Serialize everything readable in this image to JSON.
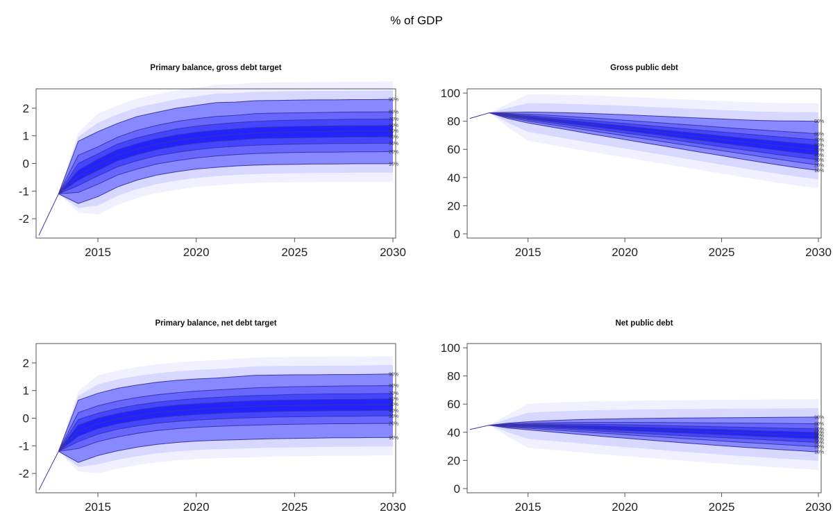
{
  "page_title": "% of GDP",
  "colors": {
    "fan": "#0000ff",
    "line": "#3a36a8",
    "axis": "#555555"
  },
  "chart_data": [
    {
      "type": "fan",
      "title": "Primary balance, gross debt target",
      "xlim": [
        2012,
        2030
      ],
      "ylim": [
        -2.7,
        2.7
      ],
      "xticks": [
        2015,
        2020,
        2025,
        2030
      ],
      "yticks": [
        -2,
        -1,
        0,
        1,
        2
      ],
      "history": {
        "x": [
          2012,
          2013
        ],
        "y": [
          -2.6,
          -1.1
        ]
      },
      "quantile_labels": [
        "90%",
        "80%",
        "70%",
        "60%",
        "50%",
        "40%",
        "30%",
        "20%",
        "10%"
      ],
      "x": [
        2013,
        2014,
        2015,
        2016,
        2017,
        2018,
        2019,
        2020,
        2021,
        2022,
        2023,
        2024,
        2025,
        2026,
        2027,
        2028,
        2029,
        2030
      ],
      "quantiles": {
        "90%": [
          -1.1,
          0.8,
          1.15,
          1.45,
          1.7,
          1.85,
          2.0,
          2.1,
          2.2,
          2.22,
          2.27,
          2.28,
          2.29,
          2.3,
          2.3,
          2.31,
          2.31,
          2.32
        ],
        "80%": [
          -1.1,
          0.3,
          0.6,
          0.95,
          1.2,
          1.38,
          1.52,
          1.62,
          1.7,
          1.74,
          1.8,
          1.82,
          1.83,
          1.84,
          1.85,
          1.86,
          1.86,
          1.87
        ],
        "70%": [
          -1.1,
          0.0,
          0.35,
          0.7,
          0.93,
          1.1,
          1.25,
          1.35,
          1.42,
          1.48,
          1.52,
          1.55,
          1.57,
          1.58,
          1.59,
          1.6,
          1.6,
          1.61
        ],
        "60%": [
          -1.1,
          -0.25,
          0.15,
          0.5,
          0.72,
          0.9,
          1.03,
          1.13,
          1.2,
          1.25,
          1.3,
          1.32,
          1.34,
          1.35,
          1.36,
          1.37,
          1.37,
          1.38
        ],
        "50%": [
          -1.1,
          -0.45,
          -0.05,
          0.3,
          0.52,
          0.7,
          0.83,
          0.93,
          1.0,
          1.05,
          1.1,
          1.12,
          1.14,
          1.15,
          1.16,
          1.17,
          1.17,
          1.18
        ],
        "40%": [
          -1.1,
          -0.6,
          -0.25,
          0.1,
          0.32,
          0.5,
          0.63,
          0.73,
          0.8,
          0.85,
          0.9,
          0.92,
          0.93,
          0.94,
          0.95,
          0.96,
          0.96,
          0.97
        ],
        "30%": [
          -1.1,
          -0.8,
          -0.45,
          -0.12,
          0.1,
          0.28,
          0.4,
          0.5,
          0.57,
          0.62,
          0.66,
          0.68,
          0.7,
          0.71,
          0.72,
          0.72,
          0.73,
          0.73
        ],
        "20%": [
          -1.1,
          -1.05,
          -0.75,
          -0.42,
          -0.2,
          -0.02,
          0.1,
          0.2,
          0.27,
          0.32,
          0.36,
          0.38,
          0.4,
          0.41,
          0.41,
          0.42,
          0.42,
          0.43
        ],
        "10%": [
          -1.1,
          -1.45,
          -1.2,
          -0.85,
          -0.6,
          -0.42,
          -0.3,
          -0.2,
          -0.14,
          -0.09,
          -0.06,
          -0.04,
          -0.03,
          -0.02,
          -0.02,
          -0.01,
          -0.01,
          -0.01
        ]
      }
    },
    {
      "type": "fan",
      "title": "Gross public debt",
      "xlim": [
        2012,
        2030
      ],
      "ylim": [
        -3,
        103
      ],
      "xticks": [
        2015,
        2020,
        2025,
        2030
      ],
      "yticks": [
        0,
        20,
        40,
        60,
        80,
        100
      ],
      "history": {
        "x": [
          2012,
          2013
        ],
        "y": [
          82,
          86
        ]
      },
      "quantile_labels": [
        "90%",
        "80%",
        "70%",
        "60%",
        "50%",
        "40%",
        "30%",
        "20%",
        "10%"
      ],
      "x": [
        2013,
        2014,
        2015,
        2016,
        2017,
        2018,
        2019,
        2020,
        2021,
        2022,
        2023,
        2024,
        2025,
        2026,
        2027,
        2028,
        2029,
        2030
      ],
      "quantiles": {
        "90%": [
          86,
          86.3,
          86.5,
          86.3,
          86,
          85.6,
          85.1,
          84.6,
          84.0,
          83.4,
          82.8,
          82.2,
          81.6,
          81.0,
          80.5,
          80.2,
          80.1,
          80.0
        ],
        "80%": [
          86,
          85.5,
          85.0,
          84.3,
          83.5,
          82.6,
          81.7,
          80.7,
          79.7,
          78.7,
          77.7,
          76.7,
          75.7,
          74.7,
          73.8,
          72.9,
          72.0,
          71.0
        ],
        "70%": [
          86,
          85.0,
          84.0,
          83.0,
          81.9,
          80.8,
          79.6,
          78.4,
          77.2,
          76.0,
          74.8,
          73.6,
          72.4,
          71.2,
          70.0,
          68.9,
          67.8,
          66.7
        ],
        "60%": [
          86,
          84.6,
          83.3,
          82.0,
          80.7,
          79.4,
          78.0,
          76.6,
          75.2,
          73.8,
          72.4,
          71.0,
          69.6,
          68.2,
          66.9,
          65.6,
          64.3,
          63.0
        ],
        "50%": [
          86,
          84.2,
          82.6,
          81.1,
          79.6,
          78.1,
          76.6,
          75.0,
          73.4,
          71.8,
          70.2,
          68.6,
          67.0,
          65.5,
          64.0,
          62.5,
          61.0,
          59.5
        ],
        "40%": [
          86,
          83.8,
          81.9,
          80.2,
          78.5,
          76.8,
          75.1,
          73.4,
          71.6,
          69.8,
          68.0,
          66.2,
          64.4,
          62.7,
          61.0,
          59.3,
          57.6,
          56.0
        ],
        "30%": [
          86,
          83.3,
          81.1,
          79.2,
          77.3,
          75.4,
          73.5,
          71.6,
          69.7,
          67.8,
          65.8,
          63.8,
          61.8,
          59.9,
          58.0,
          56.1,
          54.3,
          52.5
        ],
        "20%": [
          86,
          82.7,
          80.1,
          78.0,
          75.9,
          73.8,
          71.7,
          69.6,
          67.5,
          65.4,
          63.3,
          61.2,
          59.1,
          57.0,
          54.9,
          52.8,
          50.8,
          48.8
        ],
        "10%": [
          86,
          81.8,
          78.8,
          76.4,
          74.0,
          71.6,
          69.3,
          67.0,
          64.7,
          62.4,
          60.1,
          57.8,
          55.5,
          53.2,
          51.0,
          48.8,
          46.8,
          45.0
        ]
      }
    },
    {
      "type": "fan",
      "title": "Primary balance, net debt target",
      "xlim": [
        2012,
        2030
      ],
      "ylim": [
        -2.7,
        2.7
      ],
      "xticks": [
        2015,
        2020,
        2025,
        2030
      ],
      "yticks": [
        -2,
        -1,
        0,
        1,
        2
      ],
      "history": {
        "x": [
          2012,
          2013
        ],
        "y": [
          -2.6,
          -1.2
        ]
      },
      "quantile_labels": [
        "90%",
        "80%",
        "70%",
        "60%",
        "50%",
        "40%",
        "30%",
        "20%",
        "10%"
      ],
      "x": [
        2013,
        2014,
        2015,
        2016,
        2017,
        2018,
        2019,
        2020,
        2021,
        2022,
        2023,
        2024,
        2025,
        2026,
        2027,
        2028,
        2029,
        2030
      ],
      "quantiles": {
        "90%": [
          -1.2,
          0.65,
          0.9,
          1.08,
          1.2,
          1.3,
          1.37,
          1.42,
          1.45,
          1.5,
          1.55,
          1.56,
          1.57,
          1.57,
          1.58,
          1.58,
          1.59,
          1.6
        ],
        "80%": [
          -1.2,
          0.2,
          0.45,
          0.62,
          0.75,
          0.85,
          0.92,
          0.98,
          1.02,
          1.06,
          1.1,
          1.12,
          1.14,
          1.15,
          1.16,
          1.17,
          1.17,
          1.18
        ],
        "70%": [
          -1.2,
          -0.05,
          0.18,
          0.35,
          0.48,
          0.58,
          0.65,
          0.71,
          0.75,
          0.79,
          0.82,
          0.84,
          0.86,
          0.87,
          0.88,
          0.88,
          0.89,
          0.9
        ],
        "60%": [
          -1.2,
          -0.25,
          0.0,
          0.17,
          0.3,
          0.4,
          0.47,
          0.52,
          0.56,
          0.6,
          0.63,
          0.65,
          0.66,
          0.67,
          0.68,
          0.68,
          0.69,
          0.7
        ],
        "50%": [
          -1.2,
          -0.45,
          -0.2,
          -0.02,
          0.1,
          0.2,
          0.27,
          0.32,
          0.36,
          0.4,
          0.43,
          0.45,
          0.46,
          0.47,
          0.48,
          0.48,
          0.49,
          0.5
        ],
        "40%": [
          -1.2,
          -0.65,
          -0.38,
          -0.2,
          -0.08,
          0.02,
          0.08,
          0.13,
          0.17,
          0.2,
          0.22,
          0.24,
          0.25,
          0.26,
          0.27,
          0.27,
          0.28,
          0.28
        ],
        "30%": [
          -1.2,
          -0.85,
          -0.58,
          -0.4,
          -0.28,
          -0.18,
          -0.12,
          -0.07,
          -0.03,
          0.0,
          0.02,
          0.04,
          0.05,
          0.06,
          0.07,
          0.07,
          0.08,
          0.08
        ],
        "20%": [
          -1.2,
          -1.1,
          -0.85,
          -0.68,
          -0.55,
          -0.45,
          -0.38,
          -0.33,
          -0.3,
          -0.27,
          -0.25,
          -0.23,
          -0.22,
          -0.21,
          -0.2,
          -0.2,
          -0.19,
          -0.19
        ],
        "10%": [
          -1.2,
          -1.6,
          -1.35,
          -1.18,
          -1.05,
          -0.95,
          -0.88,
          -0.83,
          -0.8,
          -0.78,
          -0.76,
          -0.74,
          -0.73,
          -0.72,
          -0.71,
          -0.71,
          -0.7,
          -0.7
        ]
      }
    },
    {
      "type": "fan",
      "title": "Net public debt",
      "xlim": [
        2012,
        2030
      ],
      "ylim": [
        -3,
        103
      ],
      "xticks": [
        2015,
        2020,
        2025,
        2030
      ],
      "yticks": [
        0,
        20,
        40,
        60,
        80,
        100
      ],
      "history": {
        "x": [
          2012,
          2013
        ],
        "y": [
          42,
          45
        ]
      },
      "quantile_labels": [
        "90%",
        "80%",
        "70%",
        "60%",
        "50%",
        "40%",
        "30%",
        "20%",
        "10%"
      ],
      "x": [
        2013,
        2014,
        2015,
        2016,
        2017,
        2018,
        2019,
        2020,
        2021,
        2022,
        2023,
        2024,
        2025,
        2026,
        2027,
        2028,
        2029,
        2030
      ],
      "quantiles": {
        "90%": [
          45,
          46.5,
          47.5,
          48.2,
          48.7,
          49.1,
          49.4,
          49.6,
          49.8,
          50.0,
          50.1,
          50.2,
          50.3,
          50.4,
          50.5,
          50.6,
          50.7,
          50.8
        ],
        "80%": [
          45,
          45.9,
          46.4,
          46.7,
          46.9,
          47.0,
          47.0,
          47.0,
          47.0,
          46.9,
          46.8,
          46.7,
          46.6,
          46.5,
          46.4,
          46.3,
          46.2,
          46.0
        ],
        "70%": [
          45,
          45.5,
          45.7,
          45.8,
          45.8,
          45.7,
          45.5,
          45.3,
          45.1,
          44.8,
          44.5,
          44.2,
          43.9,
          43.6,
          43.3,
          43.0,
          42.7,
          42.4
        ],
        "60%": [
          45,
          45.2,
          45.2,
          45.1,
          44.9,
          44.6,
          44.3,
          43.9,
          43.5,
          43.1,
          42.7,
          42.3,
          41.9,
          41.5,
          41.1,
          40.7,
          40.3,
          39.9
        ],
        "50%": [
          45,
          44.9,
          44.7,
          44.4,
          44.0,
          43.6,
          43.1,
          42.6,
          42.1,
          41.6,
          41.1,
          40.6,
          40.1,
          39.6,
          39.1,
          38.6,
          38.1,
          37.6
        ],
        "40%": [
          45,
          44.6,
          44.2,
          43.7,
          43.1,
          42.5,
          41.9,
          41.3,
          40.7,
          40.1,
          39.5,
          38.9,
          38.3,
          37.7,
          37.1,
          36.5,
          35.9,
          35.3
        ],
        "30%": [
          45,
          44.2,
          43.6,
          42.9,
          42.2,
          41.4,
          40.6,
          39.8,
          39.0,
          38.3,
          37.6,
          36.9,
          36.2,
          35.5,
          34.8,
          34.1,
          33.4,
          32.8
        ],
        "20%": [
          45,
          43.7,
          42.8,
          41.9,
          41.0,
          40.1,
          39.2,
          38.3,
          37.4,
          36.5,
          35.6,
          34.7,
          33.8,
          32.9,
          32.1,
          31.3,
          30.5,
          29.7
        ],
        "10%": [
          45,
          43.0,
          41.7,
          40.5,
          39.3,
          38.1,
          36.9,
          35.8,
          34.7,
          33.6,
          32.5,
          31.5,
          30.5,
          29.5,
          28.6,
          27.7,
          26.9,
          26.0
        ]
      }
    }
  ]
}
